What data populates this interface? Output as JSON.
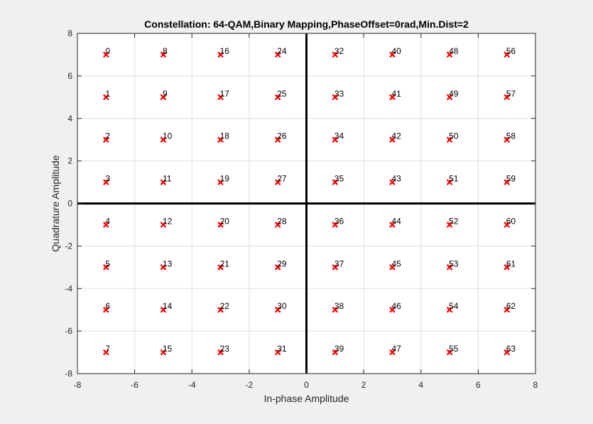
{
  "chart_data": {
    "type": "scatter",
    "title": "Constellation: 64-QAM,Binary Mapping,PhaseOffset=0rad,Min.Dist=2",
    "xlabel": "In-phase Amplitude",
    "ylabel": "Quadrature Amplitude",
    "xlim": [
      -8,
      8
    ],
    "ylim": [
      -8,
      8
    ],
    "xticks": [
      -8,
      -6,
      -4,
      -2,
      0,
      2,
      4,
      6,
      8
    ],
    "yticks": [
      -8,
      -6,
      -4,
      -2,
      0,
      2,
      4,
      6,
      8
    ],
    "grid": true,
    "marker": "x",
    "colors": {
      "marker": "#ff0000",
      "axes_bg": "#ffffff",
      "figure_bg": "#f0f0f0",
      "grid": "#dfdfdf",
      "axis_line": "#000000",
      "tick_text": "#262626"
    },
    "points": [
      {
        "label": "0",
        "x": -7,
        "y": 7
      },
      {
        "label": "1",
        "x": -7,
        "y": 5
      },
      {
        "label": "2",
        "x": -7,
        "y": 3
      },
      {
        "label": "3",
        "x": -7,
        "y": 1
      },
      {
        "label": "4",
        "x": -7,
        "y": -1
      },
      {
        "label": "5",
        "x": -7,
        "y": -3
      },
      {
        "label": "6",
        "x": -7,
        "y": -5
      },
      {
        "label": "7",
        "x": -7,
        "y": -7
      },
      {
        "label": "8",
        "x": -5,
        "y": 7
      },
      {
        "label": "9",
        "x": -5,
        "y": 5
      },
      {
        "label": "10",
        "x": -5,
        "y": 3
      },
      {
        "label": "11",
        "x": -5,
        "y": 1
      },
      {
        "label": "12",
        "x": -5,
        "y": -1
      },
      {
        "label": "13",
        "x": -5,
        "y": -3
      },
      {
        "label": "14",
        "x": -5,
        "y": -5
      },
      {
        "label": "15",
        "x": -5,
        "y": -7
      },
      {
        "label": "16",
        "x": -3,
        "y": 7
      },
      {
        "label": "17",
        "x": -3,
        "y": 5
      },
      {
        "label": "18",
        "x": -3,
        "y": 3
      },
      {
        "label": "19",
        "x": -3,
        "y": 1
      },
      {
        "label": "20",
        "x": -3,
        "y": -1
      },
      {
        "label": "21",
        "x": -3,
        "y": -3
      },
      {
        "label": "22",
        "x": -3,
        "y": -5
      },
      {
        "label": "23",
        "x": -3,
        "y": -7
      },
      {
        "label": "24",
        "x": -1,
        "y": 7
      },
      {
        "label": "25",
        "x": -1,
        "y": 5
      },
      {
        "label": "26",
        "x": -1,
        "y": 3
      },
      {
        "label": "27",
        "x": -1,
        "y": 1
      },
      {
        "label": "28",
        "x": -1,
        "y": -1
      },
      {
        "label": "29",
        "x": -1,
        "y": -3
      },
      {
        "label": "30",
        "x": -1,
        "y": -5
      },
      {
        "label": "31",
        "x": -1,
        "y": -7
      },
      {
        "label": "32",
        "x": 1,
        "y": 7
      },
      {
        "label": "33",
        "x": 1,
        "y": 5
      },
      {
        "label": "34",
        "x": 1,
        "y": 3
      },
      {
        "label": "35",
        "x": 1,
        "y": 1
      },
      {
        "label": "36",
        "x": 1,
        "y": -1
      },
      {
        "label": "37",
        "x": 1,
        "y": -3
      },
      {
        "label": "38",
        "x": 1,
        "y": -5
      },
      {
        "label": "39",
        "x": 1,
        "y": -7
      },
      {
        "label": "40",
        "x": 3,
        "y": 7
      },
      {
        "label": "41",
        "x": 3,
        "y": 5
      },
      {
        "label": "42",
        "x": 3,
        "y": 3
      },
      {
        "label": "43",
        "x": 3,
        "y": 1
      },
      {
        "label": "44",
        "x": 3,
        "y": -1
      },
      {
        "label": "45",
        "x": 3,
        "y": -3
      },
      {
        "label": "46",
        "x": 3,
        "y": -5
      },
      {
        "label": "47",
        "x": 3,
        "y": -7
      },
      {
        "label": "48",
        "x": 5,
        "y": 7
      },
      {
        "label": "49",
        "x": 5,
        "y": 5
      },
      {
        "label": "50",
        "x": 5,
        "y": 3
      },
      {
        "label": "51",
        "x": 5,
        "y": 1
      },
      {
        "label": "52",
        "x": 5,
        "y": -1
      },
      {
        "label": "53",
        "x": 5,
        "y": -3
      },
      {
        "label": "54",
        "x": 5,
        "y": -5
      },
      {
        "label": "55",
        "x": 5,
        "y": -7
      },
      {
        "label": "56",
        "x": 7,
        "y": 7
      },
      {
        "label": "57",
        "x": 7,
        "y": 5
      },
      {
        "label": "58",
        "x": 7,
        "y": 3
      },
      {
        "label": "59",
        "x": 7,
        "y": 1
      },
      {
        "label": "60",
        "x": 7,
        "y": -1
      },
      {
        "label": "61",
        "x": 7,
        "y": -3
      },
      {
        "label": "62",
        "x": 7,
        "y": -5
      },
      {
        "label": "63",
        "x": 7,
        "y": -7
      }
    ]
  }
}
